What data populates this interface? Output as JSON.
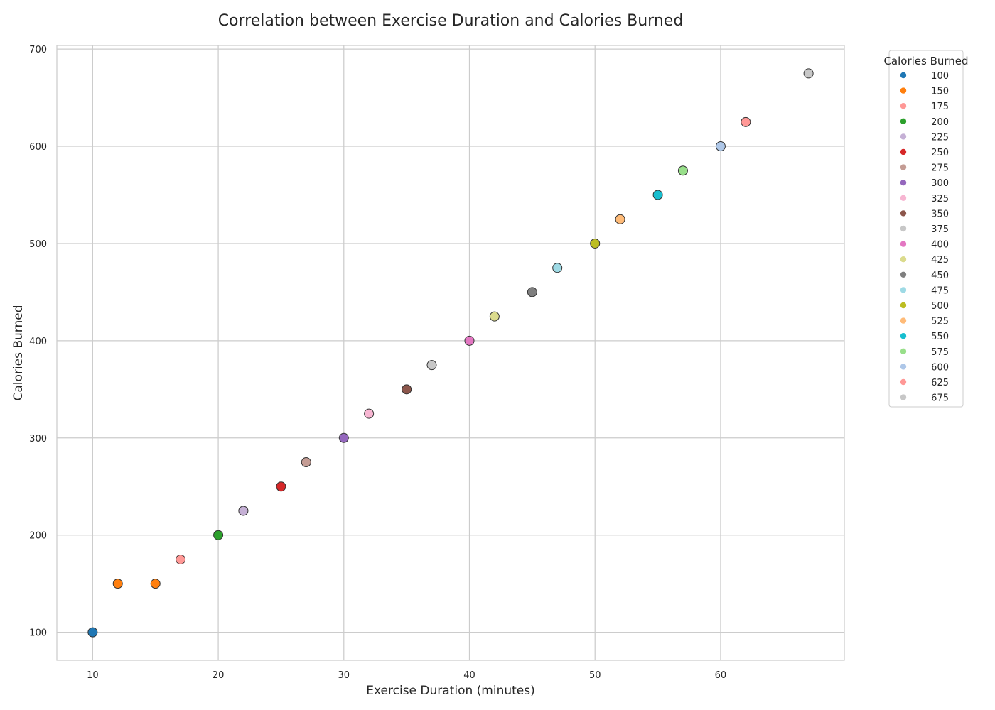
{
  "chart_data": {
    "type": "scatter",
    "title": "Correlation between Exercise Duration and Calories Burned",
    "xlabel": "Exercise Duration (minutes)",
    "ylabel": "Calories Burned",
    "xlim": [
      7.15,
      69.85
    ],
    "ylim": [
      71.25,
      703.75
    ],
    "xticks": [
      10,
      20,
      30,
      40,
      50,
      60
    ],
    "yticks": [
      100,
      200,
      300,
      400,
      500,
      600,
      700
    ],
    "grid": true,
    "legend": {
      "title": "Calories Burned",
      "placement": "outside-top-right",
      "entries": [
        {
          "label": "100",
          "color": "#1f77b4"
        },
        {
          "label": "150",
          "color": "#ff7f0e"
        },
        {
          "label": "175",
          "color": "#ff9896"
        },
        {
          "label": "200",
          "color": "#2ca02c"
        },
        {
          "label": "225",
          "color": "#c5b0d5"
        },
        {
          "label": "250",
          "color": "#d62728"
        },
        {
          "label": "275",
          "color": "#c49c94"
        },
        {
          "label": "300",
          "color": "#9467bd"
        },
        {
          "label": "325",
          "color": "#f7b6d2"
        },
        {
          "label": "350",
          "color": "#8c564b"
        },
        {
          "label": "375",
          "color": "#c7c7c7"
        },
        {
          "label": "400",
          "color": "#e377c2"
        },
        {
          "label": "425",
          "color": "#dbdb8d"
        },
        {
          "label": "450",
          "color": "#7f7f7f"
        },
        {
          "label": "475",
          "color": "#9edae5"
        },
        {
          "label": "500",
          "color": "#bcbd22"
        },
        {
          "label": "525",
          "color": "#ffbb78"
        },
        {
          "label": "550",
          "color": "#17becf"
        },
        {
          "label": "575",
          "color": "#98df8a"
        },
        {
          "label": "600",
          "color": "#aec7e8"
        },
        {
          "label": "625",
          "color": "#ff9896"
        },
        {
          "label": "675",
          "color": "#c7c7c7"
        }
      ]
    },
    "points": [
      {
        "x": 10,
        "y": 100,
        "color": "#1f77b4"
      },
      {
        "x": 12,
        "y": 150,
        "color": "#ff7f0e"
      },
      {
        "x": 15,
        "y": 150,
        "color": "#ff7f0e"
      },
      {
        "x": 17,
        "y": 175,
        "color": "#ff9896"
      },
      {
        "x": 20,
        "y": 200,
        "color": "#2ca02c"
      },
      {
        "x": 22,
        "y": 225,
        "color": "#c5b0d5"
      },
      {
        "x": 25,
        "y": 250,
        "color": "#d62728"
      },
      {
        "x": 27,
        "y": 275,
        "color": "#c49c94"
      },
      {
        "x": 30,
        "y": 300,
        "color": "#9467bd"
      },
      {
        "x": 32,
        "y": 325,
        "color": "#f7b6d2"
      },
      {
        "x": 35,
        "y": 350,
        "color": "#8c564b"
      },
      {
        "x": 37,
        "y": 375,
        "color": "#c7c7c7"
      },
      {
        "x": 40,
        "y": 400,
        "color": "#e377c2"
      },
      {
        "x": 42,
        "y": 425,
        "color": "#dbdb8d"
      },
      {
        "x": 45,
        "y": 450,
        "color": "#7f7f7f"
      },
      {
        "x": 47,
        "y": 475,
        "color": "#9edae5"
      },
      {
        "x": 50,
        "y": 500,
        "color": "#bcbd22"
      },
      {
        "x": 52,
        "y": 525,
        "color": "#ffbb78"
      },
      {
        "x": 55,
        "y": 550,
        "color": "#17becf"
      },
      {
        "x": 57,
        "y": 575,
        "color": "#98df8a"
      },
      {
        "x": 60,
        "y": 600,
        "color": "#aec7e8"
      },
      {
        "x": 62,
        "y": 625,
        "color": "#ff9896"
      },
      {
        "x": 67,
        "y": 675,
        "color": "#c7c7c7"
      }
    ]
  }
}
